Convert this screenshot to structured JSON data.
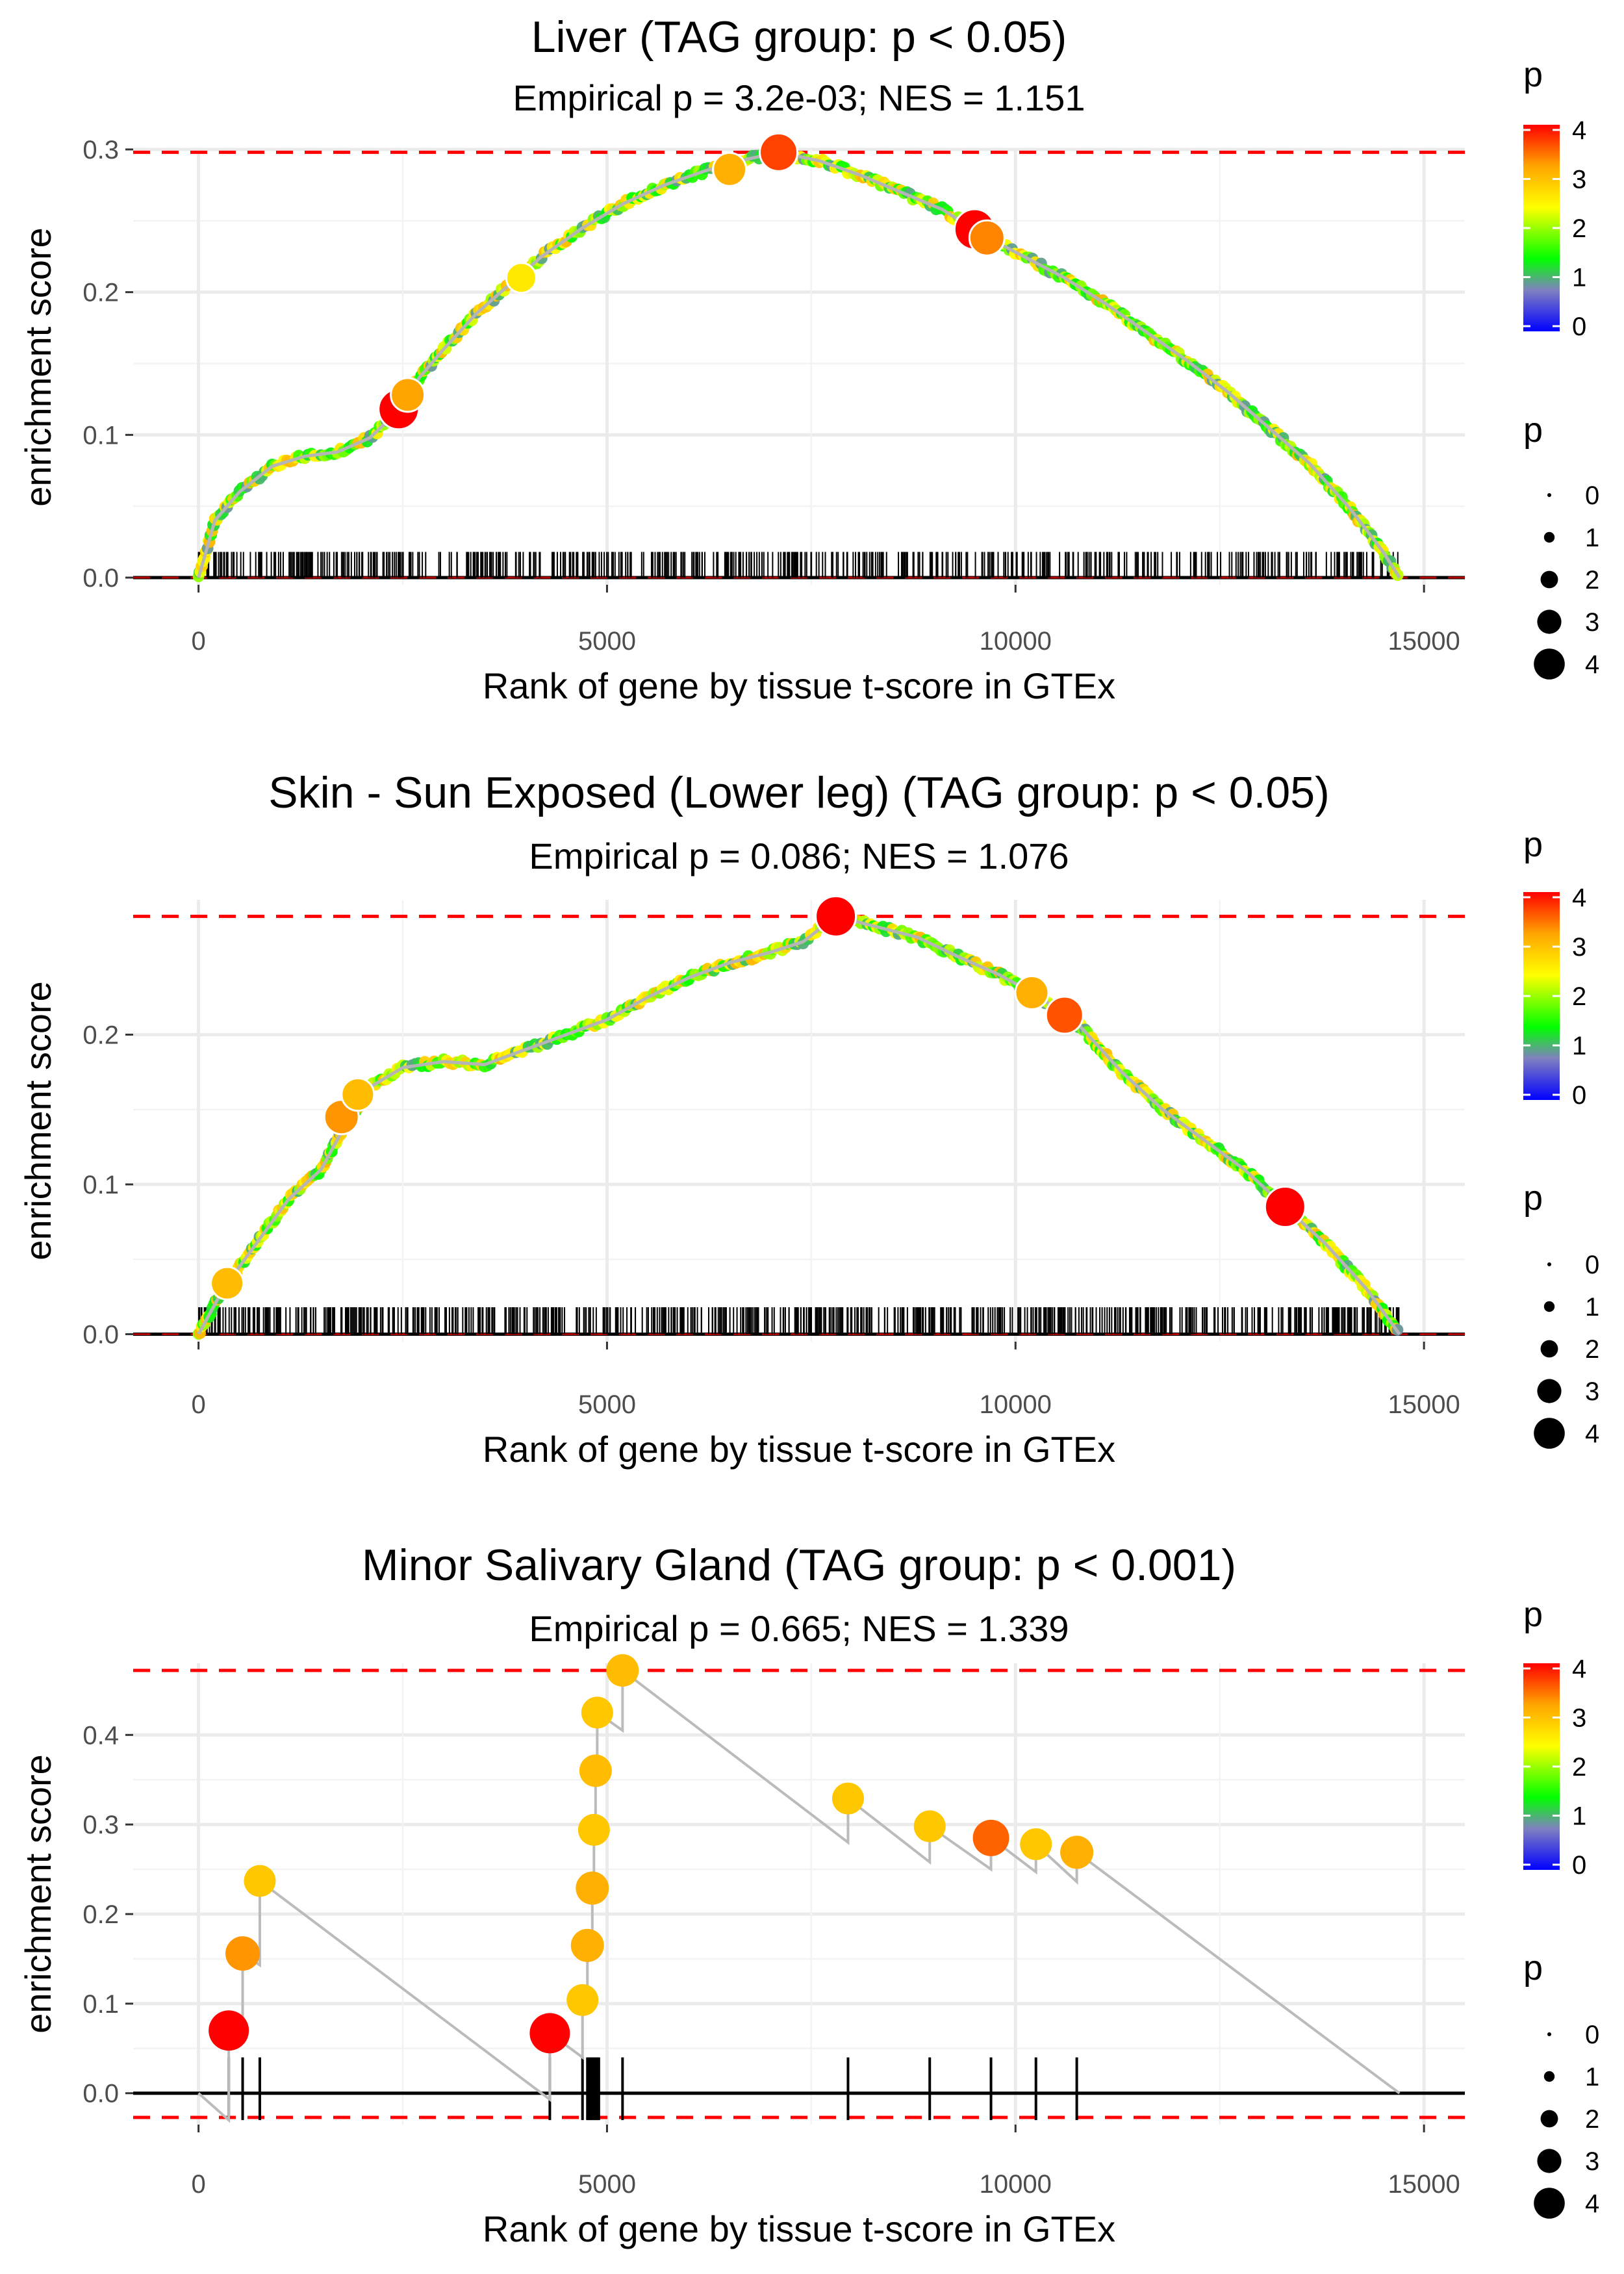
{
  "figure": {
    "x_axis_label": "Rank of gene by tissue t-score in GTEx",
    "y_axis_label": "enrichment score"
  },
  "legend": {
    "color_title": "p",
    "color_ticks": [
      "0",
      "1",
      "2",
      "3",
      "4"
    ],
    "size_title": "p",
    "size_ticks": [
      "0",
      "1",
      "2",
      "3",
      "4"
    ]
  },
  "colors": {
    "p_scale": [
      "#0000ff",
      "#8080c0",
      "#00ff00",
      "#ffff00",
      "#ffa500",
      "#ff0000"
    ],
    "dashed_line": "#ff0000",
    "curve": "#bbbbbb"
  },
  "chart_data": [
    {
      "type": "line",
      "title": "Liver (TAG group: p < 0.05)",
      "subtitle": "Empirical p = 3.2e-03; NES = 1.151",
      "xlabel": "Rank of gene by tissue t-score in GTEx",
      "ylabel": "enrichment score",
      "xlim": [
        -800,
        15500
      ],
      "ylim": [
        -0.005,
        0.3
      ],
      "xticks": [
        0,
        5000,
        10000,
        15000
      ],
      "xtick_labels": [
        "0",
        "5000",
        "10000",
        "15000"
      ],
      "yticks": [
        0,
        0.1,
        0.2,
        0.3
      ],
      "ytick_labels": [
        "0.0",
        "0.1",
        "0.2",
        "0.3"
      ],
      "dashed_lines": [
        0.298
      ],
      "curve": [
        [
          0,
          0.0
        ],
        [
          200,
          0.04
        ],
        [
          500,
          0.06
        ],
        [
          900,
          0.078
        ],
        [
          1300,
          0.085
        ],
        [
          1700,
          0.088
        ],
        [
          2100,
          0.098
        ],
        [
          2500,
          0.12
        ],
        [
          2700,
          0.14
        ],
        [
          3000,
          0.16
        ],
        [
          3400,
          0.185
        ],
        [
          3800,
          0.205
        ],
        [
          4200,
          0.225
        ],
        [
          4700,
          0.245
        ],
        [
          5200,
          0.262
        ],
        [
          5700,
          0.275
        ],
        [
          6200,
          0.285
        ],
        [
          6700,
          0.293
        ],
        [
          7100,
          0.298
        ],
        [
          7600,
          0.292
        ],
        [
          8100,
          0.282
        ],
        [
          8600,
          0.27
        ],
        [
          9100,
          0.258
        ],
        [
          9600,
          0.24
        ],
        [
          10100,
          0.225
        ],
        [
          10600,
          0.21
        ],
        [
          11100,
          0.192
        ],
        [
          11600,
          0.172
        ],
        [
          12100,
          0.152
        ],
        [
          12600,
          0.13
        ],
        [
          13100,
          0.105
        ],
        [
          13600,
          0.08
        ],
        [
          14100,
          0.048
        ],
        [
          14500,
          0.018
        ],
        [
          14700,
          0.0
        ]
      ],
      "highlight_points": [
        [
          2450,
          0.118,
          4.2
        ],
        [
          2560,
          0.128,
          3.2
        ],
        [
          7100,
          0.298,
          3.8
        ],
        [
          9500,
          0.244,
          4.2
        ],
        [
          9650,
          0.238,
          3.4
        ],
        [
          3950,
          0.21,
          2.6
        ],
        [
          6500,
          0.286,
          3.1
        ]
      ],
      "rug": {
        "range": [
          0,
          14700
        ],
        "count": 560,
        "top_value": 0.018,
        "width": 1
      }
    },
    {
      "type": "line",
      "title": "Skin - Sun Exposed (Lower leg) (TAG group: p < 0.05)",
      "subtitle": "Empirical p = 0.086; NES = 1.076",
      "xlabel": "Rank of gene by tissue t-score in GTEx",
      "ylabel": "enrichment score",
      "xlim": [
        -800,
        15500
      ],
      "ylim": [
        -0.005,
        0.29
      ],
      "xticks": [
        0,
        5000,
        10000,
        15000
      ],
      "xtick_labels": [
        "0",
        "5000",
        "10000",
        "15000"
      ],
      "yticks": [
        0,
        0.1,
        0.2
      ],
      "ytick_labels": [
        "0.0",
        "0.1",
        "0.2"
      ],
      "dashed_lines": [
        0.279
      ],
      "curve": [
        [
          0,
          0.0
        ],
        [
          300,
          0.03
        ],
        [
          700,
          0.06
        ],
        [
          1100,
          0.09
        ],
        [
          1500,
          0.11
        ],
        [
          1800,
          0.14
        ],
        [
          2100,
          0.165
        ],
        [
          2500,
          0.178
        ],
        [
          3000,
          0.182
        ],
        [
          3500,
          0.18
        ],
        [
          4000,
          0.19
        ],
        [
          4500,
          0.2
        ],
        [
          5000,
          0.21
        ],
        [
          5500,
          0.225
        ],
        [
          6000,
          0.238
        ],
        [
          6500,
          0.248
        ],
        [
          7000,
          0.255
        ],
        [
          7400,
          0.262
        ],
        [
          7800,
          0.279
        ],
        [
          8300,
          0.272
        ],
        [
          8800,
          0.265
        ],
        [
          9300,
          0.252
        ],
        [
          9800,
          0.24
        ],
        [
          10300,
          0.225
        ],
        [
          10800,
          0.205
        ],
        [
          11300,
          0.175
        ],
        [
          11800,
          0.15
        ],
        [
          12300,
          0.13
        ],
        [
          12800,
          0.11
        ],
        [
          13300,
          0.085
        ],
        [
          13800,
          0.06
        ],
        [
          14300,
          0.03
        ],
        [
          14700,
          0.0
        ]
      ],
      "highlight_points": [
        [
          7800,
          0.279,
          4.2
        ],
        [
          1750,
          0.145,
          3.3
        ],
        [
          1950,
          0.16,
          3.0
        ],
        [
          10200,
          0.228,
          3.1
        ],
        [
          10600,
          0.213,
          3.7
        ],
        [
          13300,
          0.085,
          4.2
        ],
        [
          350,
          0.034,
          3.0
        ]
      ],
      "rug": {
        "range": [
          0,
          14700
        ],
        "count": 700,
        "top_value": 0.018,
        "width": 1
      }
    },
    {
      "type": "line",
      "title": "Minor Salivary Gland (TAG group: p < 0.001)",
      "subtitle": "Empirical p = 0.665; NES = 1.339",
      "xlabel": "Rank of gene by tissue t-score in GTEx",
      "ylabel": "enrichment score",
      "xlim": [
        -800,
        15500
      ],
      "ylim": [
        -0.035,
        0.48
      ],
      "xticks": [
        0,
        5000,
        10000,
        15000
      ],
      "xtick_labels": [
        "0",
        "5000",
        "10000",
        "15000"
      ],
      "yticks": [
        0,
        0.1,
        0.2,
        0.3,
        0.4
      ],
      "ytick_labels": [
        "0.0",
        "0.1",
        "0.2",
        "0.3",
        "0.4"
      ],
      "dashed_lines": [
        0.472,
        -0.027
      ],
      "curve": [
        [
          0,
          0.0
        ],
        [
          370,
          -0.03
        ],
        [
          370,
          0.07
        ],
        [
          540,
          0.06
        ],
        [
          540,
          0.156
        ],
        [
          750,
          0.143
        ],
        [
          750,
          0.237
        ],
        [
          4300,
          -0.007
        ],
        [
          4300,
          0.067
        ],
        [
          4700,
          0.04
        ],
        [
          4700,
          0.104
        ],
        [
          4760,
          0.1
        ],
        [
          4760,
          0.165
        ],
        [
          4820,
          0.161
        ],
        [
          4820,
          0.229
        ],
        [
          4840,
          0.228
        ],
        [
          4840,
          0.294
        ],
        [
          4860,
          0.293
        ],
        [
          4860,
          0.36
        ],
        [
          4880,
          0.358
        ],
        [
          4880,
          0.425
        ],
        [
          5190,
          0.405
        ],
        [
          5190,
          0.472
        ],
        [
          7950,
          0.28
        ],
        [
          7950,
          0.329
        ],
        [
          8950,
          0.258
        ],
        [
          8950,
          0.298
        ],
        [
          9700,
          0.25
        ],
        [
          9700,
          0.285
        ],
        [
          10250,
          0.247
        ],
        [
          10250,
          0.278
        ],
        [
          10750,
          0.236
        ],
        [
          10750,
          0.269
        ],
        [
          14700,
          0.0
        ]
      ],
      "highlight_points": [
        [
          370,
          0.07,
          4.2
        ],
        [
          540,
          0.156,
          3.3
        ],
        [
          750,
          0.237,
          2.9
        ],
        [
          4300,
          0.067,
          4.2
        ],
        [
          4700,
          0.104,
          2.9
        ],
        [
          4760,
          0.165,
          3.1
        ],
        [
          4820,
          0.229,
          3.1
        ],
        [
          4840,
          0.294,
          2.9
        ],
        [
          4860,
          0.36,
          3.0
        ],
        [
          4880,
          0.425,
          2.9
        ],
        [
          5190,
          0.472,
          3.0
        ],
        [
          7950,
          0.329,
          2.9
        ],
        [
          8950,
          0.298,
          2.9
        ],
        [
          9700,
          0.285,
          3.6
        ],
        [
          10250,
          0.278,
          2.9
        ],
        [
          10750,
          0.269,
          3.1
        ]
      ],
      "rug_ticks": [
        370,
        540,
        750,
        4300,
        4700,
        4760,
        4780,
        4800,
        4820,
        4840,
        4860,
        4880,
        4900,
        5190,
        7950,
        8950,
        9700,
        10250,
        10750
      ],
      "rug": {
        "top_value": 0.04,
        "bottom_value": -0.03,
        "width": 3
      }
    }
  ]
}
